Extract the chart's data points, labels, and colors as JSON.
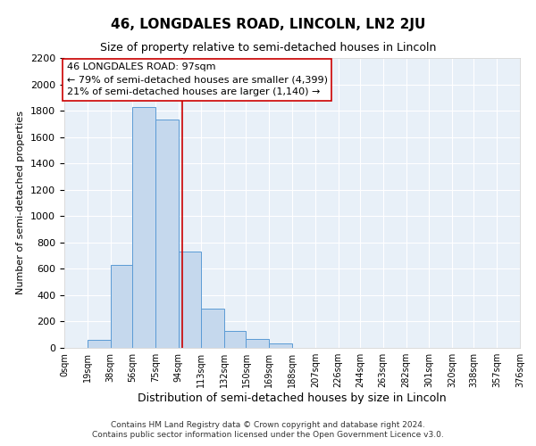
{
  "title": "46, LONGDALES ROAD, LINCOLN, LN2 2JU",
  "subtitle": "Size of property relative to semi-detached houses in Lincoln",
  "xlabel": "Distribution of semi-detached houses by size in Lincoln",
  "ylabel": "Number of semi-detached properties",
  "bin_labels": [
    "0sqm",
    "19sqm",
    "38sqm",
    "56sqm",
    "75sqm",
    "94sqm",
    "113sqm",
    "132sqm",
    "150sqm",
    "169sqm",
    "188sqm",
    "207sqm",
    "226sqm",
    "244sqm",
    "263sqm",
    "282sqm",
    "301sqm",
    "320sqm",
    "338sqm",
    "357sqm",
    "376sqm"
  ],
  "bin_edges": [
    0,
    19,
    38,
    56,
    75,
    94,
    113,
    132,
    150,
    169,
    188,
    207,
    226,
    244,
    263,
    282,
    301,
    320,
    338,
    357,
    376
  ],
  "bar_heights": [
    0,
    60,
    630,
    1830,
    1730,
    730,
    300,
    130,
    65,
    35,
    0,
    0,
    0,
    0,
    0,
    0,
    0,
    0,
    0,
    0
  ],
  "bar_color": "#c5d8ed",
  "bar_edge_color": "#5b9bd5",
  "property_value": 97,
  "vline_color": "#cc0000",
  "annotation_title": "46 LONGDALES ROAD: 97sqm",
  "annotation_line1": "← 79% of semi-detached houses are smaller (4,399)",
  "annotation_line2": "21% of semi-detached houses are larger (1,140) →",
  "annotation_box_color": "#ffffff",
  "annotation_box_edge": "#cc0000",
  "ylim": [
    0,
    2200
  ],
  "yticks": [
    0,
    200,
    400,
    600,
    800,
    1000,
    1200,
    1400,
    1600,
    1800,
    2000,
    2200
  ],
  "bg_color": "#e8f0f8",
  "title_fontsize": 11,
  "subtitle_fontsize": 9,
  "footer1": "Contains HM Land Registry data © Crown copyright and database right 2024.",
  "footer2": "Contains public sector information licensed under the Open Government Licence v3.0."
}
